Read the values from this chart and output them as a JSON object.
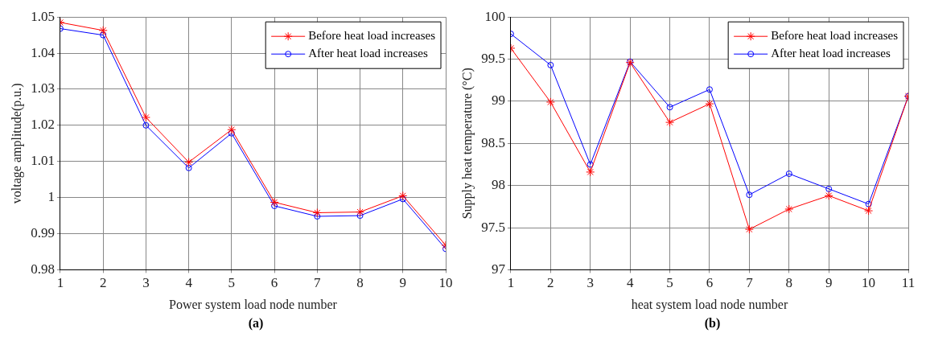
{
  "chart_data": [
    {
      "type": "line",
      "xlabel": "Power system load node number",
      "ylabel": "voltage amplitude(p.u.)",
      "x": [
        1,
        2,
        3,
        4,
        5,
        6,
        7,
        8,
        9,
        10
      ],
      "xlim": [
        1,
        10
      ],
      "xticks": [
        1,
        2,
        3,
        4,
        5,
        6,
        7,
        8,
        9,
        10
      ],
      "ylim": [
        0.98,
        1.05
      ],
      "yticks": [
        0.98,
        0.99,
        1,
        1.01,
        1.02,
        1.03,
        1.04,
        1.05
      ],
      "grid": true,
      "legend": "top right",
      "annotations": [
        "(a)"
      ],
      "series": [
        {
          "name": "Before heat load increases",
          "color": "#ff0000",
          "marker": "cross",
          "values": [
            1.0485,
            1.0463,
            1.0222,
            1.0098,
            1.0188,
            0.9987,
            0.9958,
            0.996,
            1.0005,
            0.9868
          ]
        },
        {
          "name": "After heat load increases",
          "color": "#0000ff",
          "marker": "circle",
          "values": [
            1.0468,
            1.045,
            1.02,
            1.0082,
            1.0178,
            0.9977,
            0.9948,
            0.995,
            0.9996,
            0.9858
          ]
        }
      ]
    },
    {
      "type": "line",
      "xlabel": "heat system load node number",
      "ylabel": "Supply heat temperature (°C)",
      "x": [
        1,
        2,
        3,
        4,
        5,
        6,
        7,
        8,
        9,
        10,
        11
      ],
      "xlim": [
        1,
        11
      ],
      "xticks": [
        1,
        2,
        3,
        4,
        5,
        6,
        7,
        8,
        9,
        10,
        11
      ],
      "ylim": [
        97,
        100
      ],
      "yticks": [
        97,
        97.5,
        98,
        98.5,
        99,
        99.5,
        100
      ],
      "grid": true,
      "legend": "top right",
      "annotations": [
        "(b)"
      ],
      "series": [
        {
          "name": "Before heat load increases",
          "color": "#ff0000",
          "marker": "cross",
          "values": [
            99.63,
            98.99,
            98.16,
            99.46,
            98.75,
            98.97,
            97.48,
            97.72,
            97.88,
            97.7,
            99.06
          ]
        },
        {
          "name": "After heat load increases",
          "color": "#0000ff",
          "marker": "circle",
          "values": [
            99.8,
            99.43,
            98.25,
            99.47,
            98.93,
            99.14,
            97.89,
            98.14,
            97.96,
            97.78,
            99.06
          ]
        }
      ]
    }
  ]
}
